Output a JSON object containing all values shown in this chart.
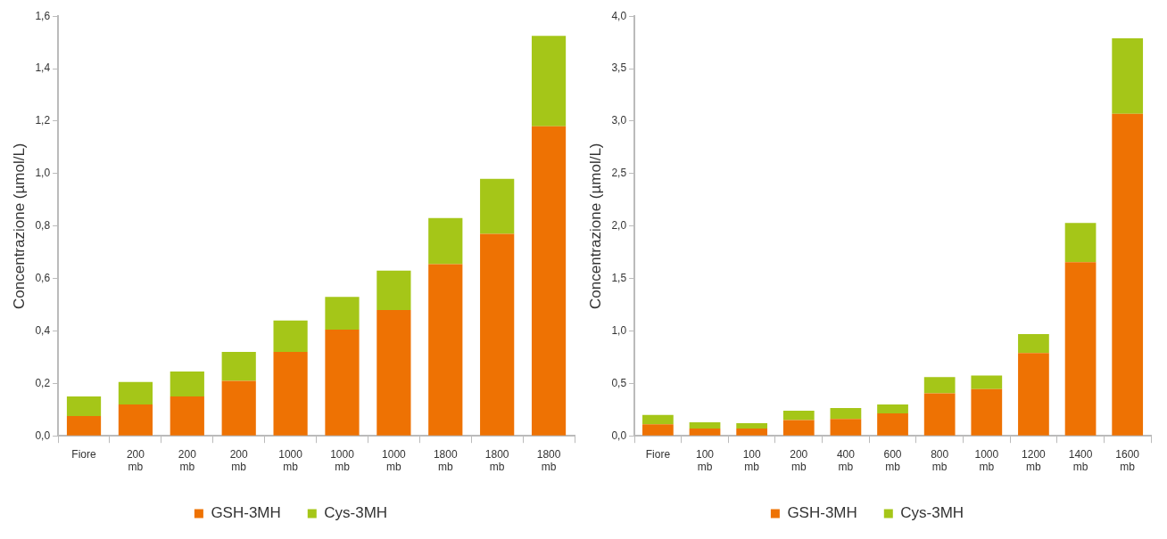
{
  "chart_data": [
    {
      "type": "bar",
      "stacked": true,
      "ylabel": "Concentrazione (µmol/L)",
      "categories": [
        "Fiore",
        "200 mb",
        "200 mb",
        "200 mb",
        "1000 mb",
        "1000 mb",
        "1000 mb",
        "1800 mb",
        "1800 mb",
        "1800 mb"
      ],
      "series": [
        {
          "name": "GSH-3MH",
          "color": "#ee7203",
          "values": [
            0.075,
            0.12,
            0.15,
            0.21,
            0.32,
            0.405,
            0.48,
            0.655,
            0.77,
            1.18
          ]
        },
        {
          "name": "Cys-3MH",
          "color": "#a5c618",
          "values": [
            0.075,
            0.085,
            0.095,
            0.11,
            0.12,
            0.125,
            0.15,
            0.175,
            0.21,
            0.345
          ]
        }
      ],
      "ylim": [
        0,
        1.6
      ],
      "yticks": [
        {
          "value": 0,
          "label": "0,0"
        },
        {
          "value": 0.2,
          "label": "0,2"
        },
        {
          "value": 0.4,
          "label": "0,4"
        },
        {
          "value": 0.6,
          "label": "0,6"
        },
        {
          "value": 0.8,
          "label": "0,8"
        },
        {
          "value": 1,
          "label": "1,0"
        },
        {
          "value": 1.2,
          "label": "1,2"
        },
        {
          "value": 1.4,
          "label": "1,4"
        },
        {
          "value": 1.6,
          "label": "1,6"
        }
      ],
      "grid": false,
      "legend": "bottom"
    },
    {
      "type": "bar",
      "stacked": true,
      "ylabel": "Concentrazione (µmol/L)",
      "categories": [
        "Fiore",
        "100 mb",
        "100 mb",
        "200 mb",
        "400 mb",
        "600 mb",
        "800 mb",
        "1000 mb",
        "1200 mb",
        "1400 mb",
        "1600 mb"
      ],
      "series": [
        {
          "name": "GSH-3MH",
          "color": "#ee7203",
          "values": [
            0.11,
            0.07,
            0.07,
            0.15,
            0.16,
            0.215,
            0.405,
            0.445,
            0.79,
            1.655,
            3.07
          ]
        },
        {
          "name": "Cys-3MH",
          "color": "#a5c618",
          "values": [
            0.09,
            0.06,
            0.05,
            0.09,
            0.105,
            0.085,
            0.155,
            0.13,
            0.18,
            0.375,
            0.72
          ]
        }
      ],
      "ylim": [
        0,
        4
      ],
      "yticks": [
        {
          "value": 0,
          "label": "0,0"
        },
        {
          "value": 0.5,
          "label": "0,5"
        },
        {
          "value": 1,
          "label": "1,0"
        },
        {
          "value": 1.5,
          "label": "1,5"
        },
        {
          "value": 2,
          "label": "2,0"
        },
        {
          "value": 2.5,
          "label": "2,5"
        },
        {
          "value": 3,
          "label": "3,0"
        },
        {
          "value": 3.5,
          "label": "3,5"
        },
        {
          "value": 4,
          "label": "4,0"
        }
      ],
      "grid": false,
      "legend": "bottom"
    }
  ]
}
